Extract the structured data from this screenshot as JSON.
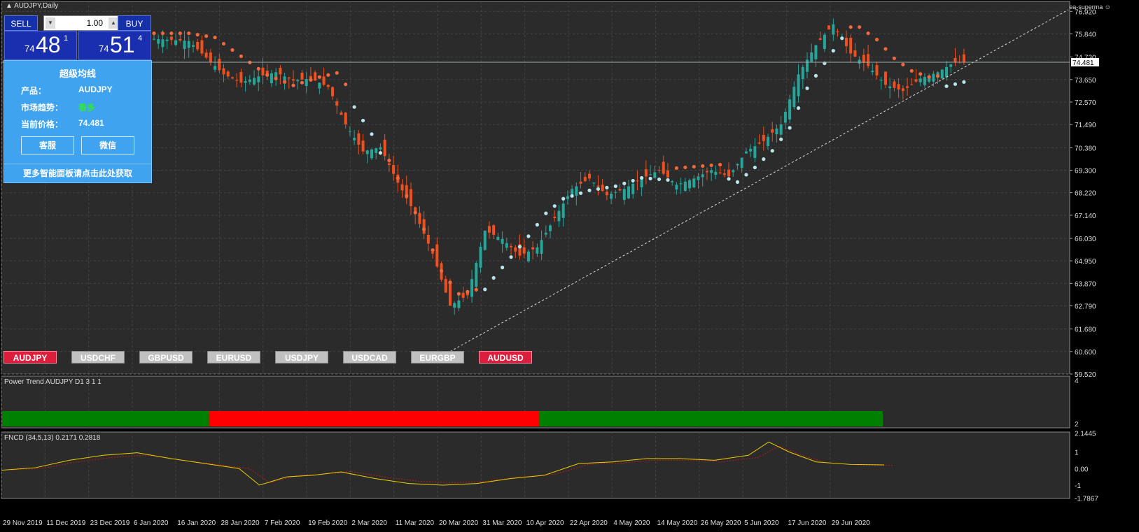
{
  "window": {
    "title": "AUDJPY,Daily",
    "brand": "ea-superma"
  },
  "trade_panel": {
    "sell_label": "SELL",
    "buy_label": "BUY",
    "lot_value": "1.00",
    "bid": {
      "prefix": "74",
      "big": "48",
      "sup": "1"
    },
    "ask": {
      "prefix": "74",
      "big": "51",
      "sup": "4"
    }
  },
  "info_panel": {
    "title": "超级均线",
    "product_label": "产品：",
    "product_value": "AUDJPY",
    "trend_label": "市场趋势：",
    "trend_value": "看多",
    "price_label": "当前价格：",
    "price_value": "74.481",
    "service_button": "客服",
    "wechat_button": "微信",
    "footer": "更多智能面板请点击此处获取",
    "trend_color": "#2ee640"
  },
  "symbols": [
    {
      "label": "AUDJPY",
      "active": true
    },
    {
      "label": "USDCHF",
      "active": false
    },
    {
      "label": "GBPUSD",
      "active": false
    },
    {
      "label": "EURUSD",
      "active": false
    },
    {
      "label": "USDJPY",
      "active": false
    },
    {
      "label": "USDCAD",
      "active": false
    },
    {
      "label": "EURGBP",
      "active": false
    },
    {
      "label": "AUDUSD",
      "active": true
    }
  ],
  "indicators": {
    "power_trend_title": "Power Trend AUDJPY D1 3 1 1",
    "power_trend_axis": [
      "4",
      "2"
    ],
    "fncd_title": "FNCD (34,5,13) 0.2171 0.2818",
    "fncd_axis": [
      "2.1445",
      "1",
      "0.00",
      "-1",
      "-1.7867"
    ]
  },
  "colors": {
    "bull": "#26a69a",
    "bear": "#f0501e",
    "dot_bull": "#b9e6ec",
    "dot_bear": "#f0683c",
    "grid": "#444444",
    "trend_green": "#008000",
    "trend_red": "#ff0000",
    "fncd_main": "#e8d000",
    "fncd_signal": "#c01818"
  },
  "chart_data": {
    "type": "candlestick",
    "symbol": "AUDJPY",
    "timeframe": "Daily",
    "ylim": [
      59.52,
      77.4
    ],
    "y_ticks": [
      "76.920",
      "75.840",
      "74.730",
      "73.650",
      "72.570",
      "71.490",
      "70.380",
      "69.300",
      "68.220",
      "67.140",
      "66.030",
      "64.950",
      "63.870",
      "62.790",
      "61.680",
      "60.600",
      "59.520"
    ],
    "x_ticks": [
      "29 Nov 2019",
      "11 Dec 2019",
      "23 Dec 2019",
      "6 Jan 2020",
      "16 Jan 2020",
      "28 Jan 2020",
      "7 Feb 2020",
      "19 Feb 2020",
      "2 Mar 2020",
      "11 Mar 2020",
      "20 Mar 2020",
      "31 Mar 2020",
      "10 Apr 2020",
      "22 Apr 2020",
      "4 May 2020",
      "14 May 2020",
      "26 May 2020",
      "5 Jun 2020",
      "17 Jun 2020",
      "29 Jun 2020"
    ],
    "last_price": "74.481",
    "close_path": [
      [
        0,
        75.6
      ],
      [
        8,
        75.5
      ],
      [
        12,
        74.7
      ],
      [
        16,
        73.9
      ],
      [
        20,
        73.5
      ],
      [
        24,
        73.8
      ],
      [
        28,
        74.0
      ],
      [
        32,
        73.6
      ],
      [
        36,
        73.7
      ],
      [
        40,
        73.3
      ],
      [
        44,
        71.5
      ],
      [
        48,
        70.2
      ],
      [
        52,
        70.4
      ],
      [
        56,
        68.7
      ],
      [
        60,
        67.2
      ],
      [
        64,
        65.3
      ],
      [
        68,
        62.8
      ],
      [
        72,
        63.3
      ],
      [
        76,
        66.4
      ],
      [
        80,
        66.0
      ],
      [
        84,
        65.2
      ],
      [
        88,
        65.6
      ],
      [
        92,
        67.0
      ],
      [
        96,
        68.4
      ],
      [
        100,
        68.9
      ],
      [
        104,
        68.1
      ],
      [
        108,
        68.4
      ],
      [
        112,
        68.9
      ],
      [
        116,
        69.3
      ],
      [
        120,
        68.6
      ],
      [
        124,
        68.9
      ],
      [
        128,
        69.3
      ],
      [
        132,
        69.0
      ],
      [
        136,
        70.2
      ],
      [
        140,
        70.7
      ],
      [
        144,
        71.5
      ],
      [
        148,
        73.9
      ],
      [
        152,
        75.3
      ],
      [
        156,
        76.3
      ],
      [
        160,
        74.9
      ],
      [
        164,
        74.3
      ],
      [
        168,
        73.4
      ],
      [
        172,
        73.1
      ],
      [
        176,
        73.7
      ],
      [
        180,
        74.0
      ],
      [
        184,
        74.5
      ],
      [
        186,
        74.48
      ]
    ],
    "dot_path": [
      [
        0,
        75.6
      ],
      [
        8,
        75.6
      ],
      [
        14,
        75.4
      ],
      [
        20,
        74.5
      ],
      [
        26,
        73.6
      ],
      [
        32,
        73.1
      ],
      [
        38,
        73.5
      ],
      [
        42,
        73.7
      ],
      [
        46,
        72.6
      ],
      [
        50,
        71.3
      ],
      [
        54,
        69.5
      ],
      [
        58,
        67.8
      ],
      [
        62,
        66.2
      ],
      [
        66,
        64.2
      ],
      [
        70,
        63.1
      ],
      [
        74,
        63.3
      ],
      [
        78,
        64.4
      ],
      [
        82,
        65.4
      ],
      [
        86,
        66.4
      ],
      [
        90,
        67.5
      ],
      [
        94,
        68.2
      ],
      [
        100,
        68.6
      ],
      [
        106,
        68.8
      ],
      [
        112,
        69.2
      ],
      [
        118,
        69.1
      ],
      [
        124,
        69.2
      ],
      [
        130,
        69.3
      ],
      [
        134,
        69.0
      ],
      [
        138,
        69.7
      ],
      [
        142,
        70.5
      ],
      [
        146,
        71.6
      ],
      [
        150,
        73.5
      ],
      [
        154,
        74.7
      ],
      [
        158,
        75.9
      ],
      [
        162,
        75.9
      ],
      [
        166,
        75.3
      ],
      [
        170,
        74.4
      ],
      [
        174,
        73.8
      ],
      [
        178,
        73.5
      ],
      [
        182,
        73.6
      ],
      [
        186,
        73.8
      ]
    ],
    "dot_bear_ranges": [
      [
        0,
        44
      ],
      [
        54,
        74
      ],
      [
        120,
        130
      ],
      [
        160,
        180
      ]
    ],
    "power_trend_segments": [
      {
        "from": 0,
        "to": 0.235,
        "color": "green"
      },
      {
        "from": 0.235,
        "to": 0.61,
        "color": "red"
      },
      {
        "from": 0.61,
        "to": 1.0,
        "color": "green"
      }
    ],
    "fncd_path": [
      [
        0,
        -0.1
      ],
      [
        10,
        0.05
      ],
      [
        20,
        0.5
      ],
      [
        30,
        0.8
      ],
      [
        40,
        0.95
      ],
      [
        50,
        0.6
      ],
      [
        60,
        0.3
      ],
      [
        70,
        0.0
      ],
      [
        76,
        -1.0
      ],
      [
        84,
        -0.5
      ],
      [
        92,
        -0.4
      ],
      [
        100,
        -0.2
      ],
      [
        110,
        -0.6
      ],
      [
        120,
        -0.9
      ],
      [
        130,
        -1.0
      ],
      [
        140,
        -0.9
      ],
      [
        150,
        -0.6
      ],
      [
        160,
        -0.4
      ],
      [
        170,
        0.3
      ],
      [
        180,
        0.4
      ],
      [
        190,
        0.6
      ],
      [
        200,
        0.6
      ],
      [
        210,
        0.5
      ],
      [
        220,
        0.8
      ],
      [
        226,
        1.6
      ],
      [
        232,
        1.0
      ],
      [
        240,
        0.4
      ],
      [
        250,
        0.25
      ],
      [
        260,
        0.22
      ]
    ],
    "trendline": {
      "from": [
        68,
        60.6
      ],
      "to": [
        210,
        77.0
      ]
    }
  }
}
